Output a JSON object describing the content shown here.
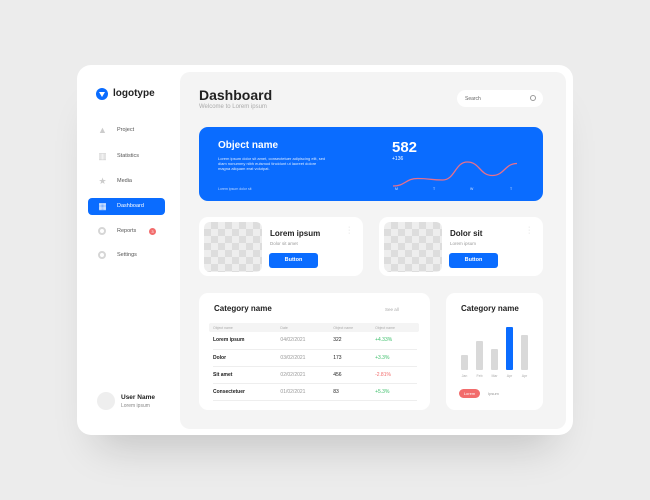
{
  "sidebar": {
    "logo": "logotype",
    "items": [
      {
        "label": "Project",
        "icon": "triangle-icon"
      },
      {
        "label": "Statistics",
        "icon": "bar-chart-icon"
      },
      {
        "label": "Media",
        "icon": "star-icon"
      },
      {
        "label": "Dashboard",
        "icon": "dashboard-icon",
        "active": true
      },
      {
        "label": "Reports",
        "icon": "circle-icon",
        "badge": "3"
      },
      {
        "label": "Settings",
        "icon": "circle-icon"
      }
    ],
    "user": {
      "name": "User Name",
      "sub": "Lorem ipsum"
    }
  },
  "header": {
    "title": "Dashboard",
    "subtitle": "Welcome to Lorem ipsum",
    "search_placeholder": "Search"
  },
  "hero": {
    "title": "Object name",
    "text": "Lorem ipsum dolor sit amet, consectetuer adipiscing elit, sed diam nonummy nibh euismod tincidunt ut laoreet dolore magna aliquam erat volutpat.",
    "footer": "Lorem ipsum dolor sit",
    "value": "582",
    "delta": "+136",
    "days": [
      "M",
      "T",
      "W",
      "T"
    ],
    "sparkline": [
      0.1,
      0.35,
      0.3,
      0.9,
      0.45,
      0.85
    ],
    "line_color": "#e9708a"
  },
  "products": [
    {
      "title": "Lorem ipsum",
      "sub": "Dolor sit amet",
      "button": "Button"
    },
    {
      "title": "Dolor sit",
      "sub": "Lorem ipsum",
      "button": "Button"
    }
  ],
  "table": {
    "title": "Category name",
    "see_all": "See all",
    "headers": [
      "Object name",
      "Date",
      "Object name",
      "Object name"
    ],
    "rows": [
      [
        "Lorem ipsum",
        "04/02/2021",
        "322",
        "+4.33%"
      ],
      [
        "Dolor",
        "03/02/2021",
        "173",
        "+3.3%"
      ],
      [
        "Sit amet",
        "02/02/2021",
        "456",
        "-2.81%"
      ],
      [
        "Consectetuer",
        "01/02/2021",
        "83",
        "+5.3%"
      ]
    ]
  },
  "chart_data": {
    "type": "bar",
    "title": "Category name",
    "categories": [
      "Jan",
      "Feb",
      "Mar",
      "Apr",
      "Apr"
    ],
    "values": [
      15,
      29,
      21,
      43,
      35
    ],
    "highlight_index": 3,
    "legend": [
      "Lorem",
      "Ipsum"
    ],
    "colors": {
      "bar": "#d9d9d9",
      "highlight": "#0a6cff",
      "legend_active": "#f26c6c"
    }
  }
}
